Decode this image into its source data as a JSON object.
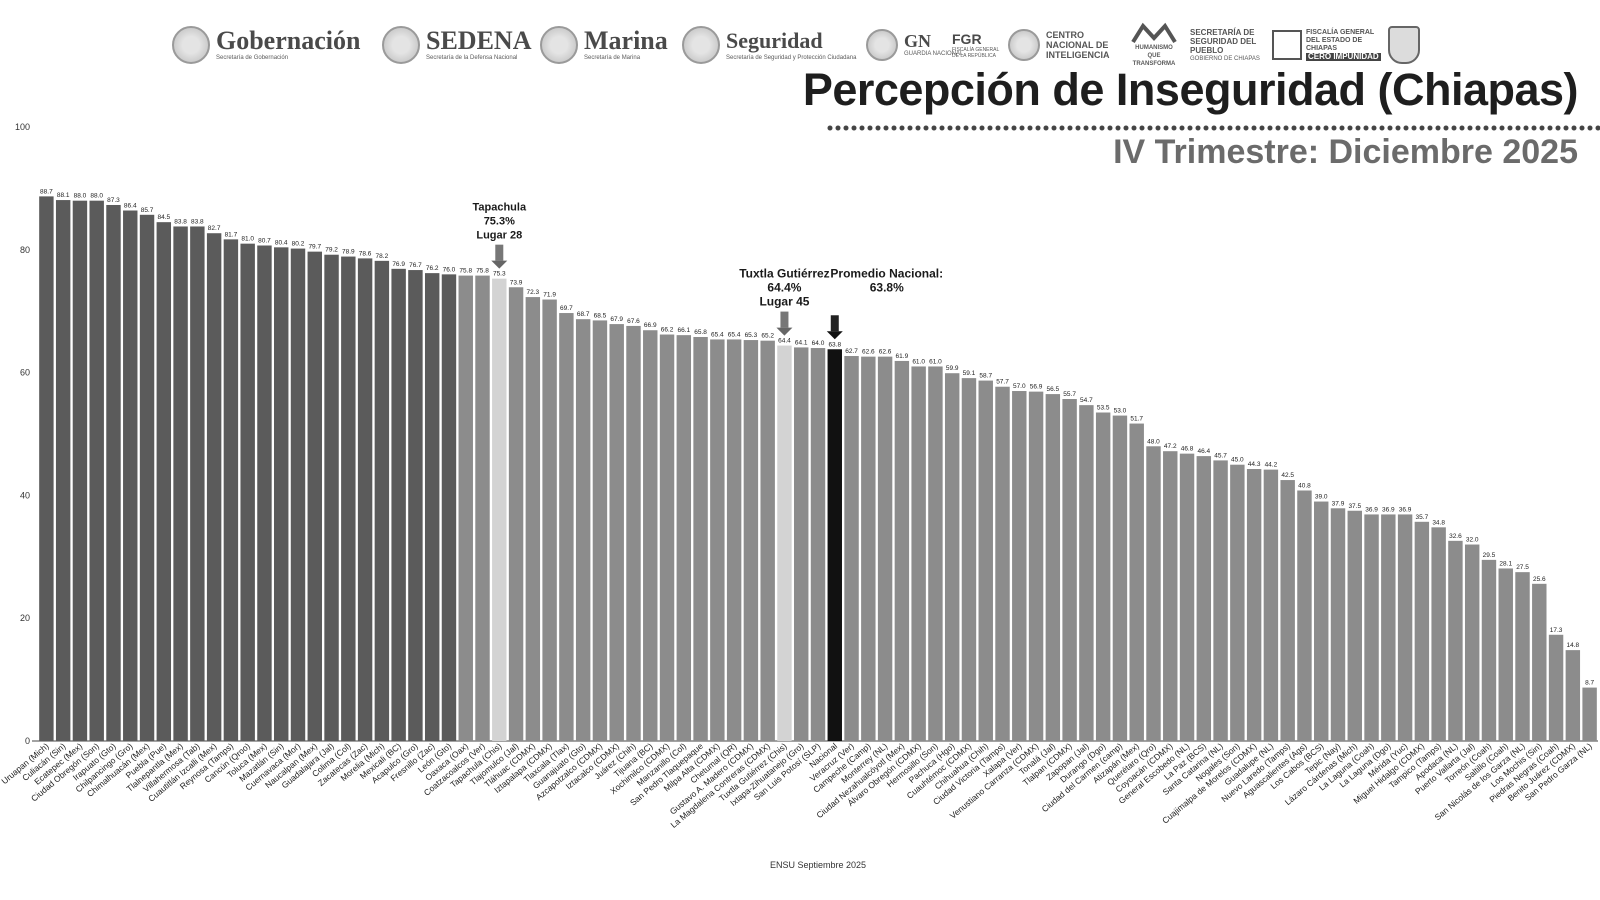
{
  "header": {
    "logos": [
      {
        "name": "Gobernación",
        "sub": "Secretaría de Gobernación"
      },
      {
        "name": "SEDENA",
        "sub": "Secretaría de la Defensa Nacional"
      },
      {
        "name": "Marina",
        "sub": "Secretaría de Marina"
      },
      {
        "name": "Seguridad",
        "sub": "Secretaría de Seguridad y Protección Ciudadana"
      },
      {
        "name": "GN",
        "sub": "GUARDIA NACIONAL"
      },
      {
        "name": "FGR",
        "sub": "FISCALÍA GENERAL DE LA REPÚBLICA"
      },
      {
        "name": "CENTRO NACIONAL DE INTELIGENCIA",
        "sub": ""
      },
      {
        "name": "HUMANISMO QUE TRANSFORMA",
        "sub": ""
      },
      {
        "name": "SECRETARÍA DE SEGURIDAD DEL PUEBLO",
        "sub": "GOBIERNO DE CHIAPAS"
      },
      {
        "name": "FISCALÍA GENERAL DEL ESTADO DE CHIAPAS",
        "sub": "CERO IMPUNIDAD"
      }
    ]
  },
  "chart_data": {
    "type": "bar",
    "title": "Percepción de Inseguridad (Chiapas)",
    "subtitle": "IV Trimestre:  Diciembre 2025",
    "source": "ENSU Septiembre 2025",
    "ylim": [
      0,
      100
    ],
    "yticks": [
      0,
      20,
      40,
      60,
      80,
      100
    ],
    "grid": false,
    "colors": {
      "dark": "#5b5b5b",
      "light": "#8c8c8c",
      "highlight": "#d3d3d3",
      "national": "#111111"
    },
    "categories": [
      "Uruapan (Mich)",
      "Culiacán (Sin)",
      "Ecatepec (Mex)",
      "Ciudad Obregón (Son)",
      "Irapuato (Gto)",
      "Chilpancingo (Gro)",
      "Chimalhuacán (Mex)",
      "Puebla (Pue)",
      "Tlalnepantla (Mex)",
      "Villahermosa (Tab)",
      "Cuautitlán Izcalli (Mex)",
      "Reynosa (Tamps)",
      "Cancún (Qroo)",
      "Toluca (Mex)",
      "Mazatlán (Sin)",
      "Cuernavaca (Mor)",
      "Naucalpan (Mex)",
      "Guadalajara (Jal)",
      "Colima (Col)",
      "Zacatecas (Zac)",
      "Morelia (Mich)",
      "Mexicali (BC)",
      "Acapulco (Gro)",
      "Fresnillo (Zac)",
      "León (Gto)",
      "Oaxaca (Oax)",
      "Coatzacoalcos (Ver)",
      "Tapachula (Chis)",
      "Tlajomulco (Jal)",
      "Tláhuac (CDMX)",
      "Iztapalapa (CDMX)",
      "Tlaxcala (Tlax)",
      "Guanajuato (Gto)",
      "Azcapotzalco (CDMX)",
      "Iztacalco (CDMX)",
      "Juárez (Chih)",
      "Tijuana (BC)",
      "Xochimilco (CDMX)",
      "Manzanillo (Col)",
      "San Pedro Tlaquepaque",
      "Milpa Alta (CDMX)",
      "Chetumal (QR)",
      "Gustavo A. Madero (CDMX)",
      "La Magdalena Contreras (CDMX)",
      "Tuxtla Gutiérrez (Chis)",
      "Ixtapa-Zihuatanejo (Gro)",
      "San Luis Potosí (SLP)",
      "Nacional",
      "Veracruz (Ver)",
      "Campeche (Camp)",
      "Monterrey (NL)",
      "Ciudad Nezahualcóyotl (Mex)",
      "Álvaro Obregón (CDMX)",
      "Hermosillo (Son)",
      "Pachuca (Hgo)",
      "Cuauhtémoc (CDMX)",
      "Chihuahua (Chih)",
      "Ciudad Victoria (Tamps)",
      "Xalapa (Ver)",
      "Venustiano Carranza (CDMX)",
      "Tonalá (Jal)",
      "Tlalpan (CDMX)",
      "Zapopan (Jal)",
      "Durango (Dgo)",
      "Ciudad del Carmen (camp)",
      "Atizapán (Mex)",
      "Querétaro (Qro)",
      "Coyoacán (CDMX)",
      "General Escobedo (NL)",
      "La Paz (BCS)",
      "Santa Catarina (NL)",
      "Nogales (Son)",
      "Cuajimalpa de Morelos (CDMX)",
      "Guadalupe (NL)",
      "Nuevo Laredo (Tamps)",
      "Aguascalientes (Ags)",
      "Los Cabos (BCS)",
      "Tepic (Nay)",
      "Lázaro Cárdenas (Mich)",
      "La Laguna (Coah)",
      "La Laguna (Dgo)",
      "Mérida (Yuc)",
      "Miguel Hidalgo (CDMX)",
      "Tampico (Tamps)",
      "Apodaca (NL)",
      "Puerto Vallarta (Jal)",
      "Torreón (Coah)",
      "Saltillo (Coah)",
      "San Nicolás de los Garza (NL)",
      "Los Mochis (Sin)",
      "Piedras Negras (Coah)",
      "Benito Juárez (CDMX)",
      "San Pedro Garza (NL)"
    ],
    "values": [
      88.7,
      88.1,
      88.0,
      88.0,
      87.3,
      86.4,
      85.7,
      84.5,
      83.8,
      83.8,
      82.7,
      81.7,
      81.0,
      80.7,
      80.4,
      80.2,
      79.7,
      79.2,
      78.9,
      78.6,
      78.2,
      76.9,
      76.7,
      76.2,
      76.0,
      75.8,
      75.8,
      75.3,
      73.9,
      72.3,
      71.9,
      69.7,
      68.7,
      68.5,
      67.9,
      67.6,
      66.9,
      66.2,
      66.1,
      65.8,
      65.4,
      65.4,
      65.3,
      65.2,
      64.4,
      64.1,
      64.0,
      63.8,
      62.7,
      62.6,
      62.6,
      61.9,
      61.0,
      61.0,
      59.9,
      59.1,
      58.7,
      57.7,
      57.0,
      56.9,
      56.5,
      55.7,
      54.7,
      53.5,
      53.0,
      51.7,
      48.0,
      47.2,
      46.8,
      46.4,
      45.7,
      45.0,
      44.3,
      44.2,
      42.5,
      40.8,
      39.0,
      37.9,
      37.5,
      36.9,
      36.9,
      36.9,
      35.7,
      34.8,
      32.6,
      32.0,
      29.5,
      28.1,
      27.5,
      25.6,
      17.3,
      14.8,
      8.7
    ],
    "annotations": [
      {
        "target": "Tapachula (Chis)",
        "lines": [
          "Tapachula",
          "75.3%",
          "Lugar 28"
        ]
      },
      {
        "target": "Tuxtla Gutiérrez (Chis)",
        "lines": [
          "Tuxtla Gutiérrez",
          "64.4%",
          "Lugar 45"
        ]
      },
      {
        "target": "Nacional",
        "lines": [
          "Promedio Nacional:",
          "63.8%"
        ]
      }
    ],
    "dark_count": 25
  }
}
